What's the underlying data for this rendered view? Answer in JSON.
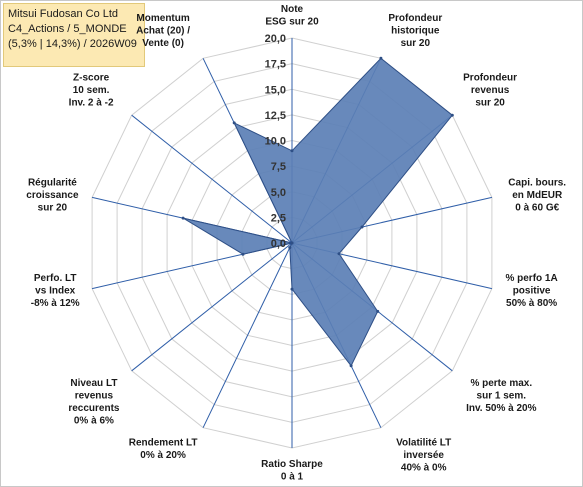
{
  "info": {
    "line1": "Mitsui Fudosan Co Ltd",
    "line2": "C4_Actions / 5_MONDE",
    "line3": "(5,3% | 14,3%) / 2026W09"
  },
  "chart_data": {
    "type": "radar",
    "axes": [
      [
        "Note",
        "ESG sur 20"
      ],
      [
        "Profondeur",
        "historique",
        "sur 20"
      ],
      [
        "Profondeur",
        "revenus",
        "sur 20"
      ],
      [
        "Capi. bours.",
        "en MdEUR",
        "0 à 60 G€"
      ],
      [
        "% perfo 1A",
        "positive",
        "50% à 80%"
      ],
      [
        "% perte max.",
        "sur 1 sem.",
        "Inv. 50% à 20%"
      ],
      [
        "Volatilité LT",
        "inversée",
        "40% à 0%"
      ],
      [
        "Ratio Sharpe",
        "0 à 1"
      ],
      [
        "Rendement LT",
        "0% à 20%"
      ],
      [
        "Niveau LT",
        "revenus",
        "reccurents",
        "0% à 6%"
      ],
      [
        "Perfo. LT",
        "vs Index",
        "-8% à 12%"
      ],
      [
        "Régularité",
        "croissance",
        "sur 20"
      ],
      [
        "Z-score",
        "10 sem.",
        "Inv. 2 à -2"
      ],
      [
        "Momentum",
        "Achat (20) /",
        "Vente (0)"
      ]
    ],
    "values": [
      9.0,
      20.0,
      20.0,
      7.0,
      4.7,
      10.7,
      13.3,
      4.5,
      0.5,
      0.0,
      4.9,
      10.9,
      0.0,
      13.0
    ],
    "ticks": [
      "0,0",
      "2,5",
      "5,0",
      "7,5",
      "10,0",
      "12,5",
      "15,0",
      "17,5",
      "20,0"
    ],
    "rmax": 20,
    "fill_color": "#5b7fb5",
    "stroke_color": "#2e4f86",
    "axis_color": "#2f5ea8",
    "grid_color": "#d0d0d0"
  }
}
